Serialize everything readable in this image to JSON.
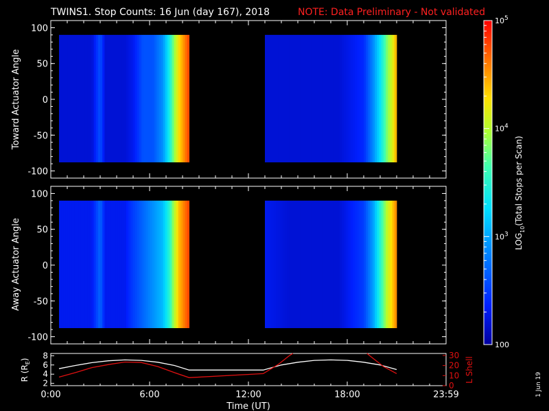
{
  "header": {
    "title": "TWINS1. Stop Counts: 16 Jun (day 167), 2018",
    "note": "NOTE: Data Preliminary - Not validated"
  },
  "footer": {
    "stamp": "1 Jun 19"
  },
  "colors": {
    "note": "#ff2020",
    "red_series": "#e01010",
    "white_series": "#ffffff"
  },
  "chart_data": [
    {
      "type": "heatmap",
      "panel": "toward",
      "ylabel": "Toward Actuator Angle",
      "ylim": [
        -110,
        110
      ],
      "yticks": [
        100,
        50,
        0,
        -50,
        -100
      ],
      "xlim": [
        0,
        24
      ],
      "xticklabels": [
        "0:00",
        "6:00",
        "12:00",
        "18:00",
        "23:59"
      ],
      "colorscale": "log10 counts, 100 to 1e5",
      "blocks": [
        {
          "t_start": 0.5,
          "t_end": 8.4,
          "angle_min": -88,
          "angle_max": 90,
          "log_counts_by_time": [
            [
              0.5,
              2.2
            ],
            [
              1.5,
              2.2
            ],
            [
              2.5,
              2.2
            ],
            [
              3.0,
              2.6
            ],
            [
              3.3,
              2.2
            ],
            [
              4.5,
              2.2
            ],
            [
              5.0,
              2.3
            ],
            [
              5.6,
              2.6
            ],
            [
              6.2,
              2.6
            ],
            [
              6.8,
              2.9
            ],
            [
              7.2,
              3.4
            ],
            [
              7.5,
              3.9
            ],
            [
              7.8,
              4.3
            ],
            [
              8.4,
              4.8
            ]
          ]
        },
        {
          "t_start": 13.0,
          "t_end": 21.0,
          "angle_min": -88,
          "angle_max": 90,
          "log_counts_by_time": [
            [
              13.0,
              2.2
            ],
            [
              14.5,
              2.2
            ],
            [
              16.0,
              2.2
            ],
            [
              17.5,
              2.2
            ],
            [
              19.0,
              2.4
            ],
            [
              19.6,
              2.9
            ],
            [
              20.0,
              3.3
            ],
            [
              20.4,
              3.8
            ],
            [
              20.8,
              4.2
            ],
            [
              21.0,
              4.5
            ]
          ]
        }
      ]
    },
    {
      "type": "heatmap",
      "panel": "away",
      "ylabel": "Away Actuator Angle",
      "ylim": [
        -110,
        110
      ],
      "yticks": [
        100,
        50,
        0,
        -50,
        -100
      ],
      "xlim": [
        0,
        24
      ],
      "xticklabels": [
        "0:00",
        "6:00",
        "12:00",
        "18:00",
        "23:59"
      ],
      "colorscale": "log10 counts, 100 to 1e5",
      "blocks": [
        {
          "t_start": 0.5,
          "t_end": 8.4,
          "angle_min": -88,
          "angle_max": 90,
          "log_counts_by_time": [
            [
              0.5,
              2.3
            ],
            [
              1.5,
              2.3
            ],
            [
              2.5,
              2.3
            ],
            [
              3.0,
              2.7
            ],
            [
              3.3,
              2.3
            ],
            [
              4.5,
              2.3
            ],
            [
              5.0,
              2.5
            ],
            [
              5.6,
              2.7
            ],
            [
              6.2,
              2.9
            ],
            [
              6.8,
              3.1
            ],
            [
              7.2,
              3.5
            ],
            [
              7.5,
              4.0
            ],
            [
              7.8,
              4.4
            ],
            [
              8.4,
              4.8
            ]
          ]
        },
        {
          "t_start": 13.0,
          "t_end": 21.0,
          "angle_min": -88,
          "angle_max": 90,
          "log_counts_by_time": [
            [
              13.0,
              2.3
            ],
            [
              14.5,
              2.2
            ],
            [
              16.0,
              2.2
            ],
            [
              17.5,
              2.2
            ],
            [
              19.0,
              2.5
            ],
            [
              19.6,
              3.0
            ],
            [
              20.0,
              3.5
            ],
            [
              20.4,
              4.0
            ],
            [
              20.8,
              4.4
            ],
            [
              21.0,
              4.6
            ]
          ]
        }
      ]
    },
    {
      "type": "colorbar",
      "label": "LOG",
      "label_sub": "10",
      "label_rest": "(Total Stops per Scan)",
      "range": [
        100,
        100000
      ],
      "ticks": [
        {
          "value": 100000,
          "base": "10",
          "exp": "5"
        },
        {
          "value": 10000,
          "base": "10",
          "exp": "4"
        },
        {
          "value": 1000,
          "base": "10",
          "exp": "3"
        },
        {
          "value": 100,
          "base": "100",
          "exp": ""
        }
      ]
    },
    {
      "type": "line",
      "panel": "orbit",
      "xlabel": "Time (UT)",
      "xlim": [
        0,
        24
      ],
      "xticklabels": [
        "0:00",
        "6:00",
        "12:00",
        "18:00",
        "23:59"
      ],
      "y_left": {
        "label": "R (R",
        "label_sub": "E",
        "label_end": ")",
        "ylim": [
          1.5,
          8.5
        ],
        "ticks": [
          "2",
          "4",
          "6",
          "8"
        ]
      },
      "y_right": {
        "label": "L Shell",
        "ylim": [
          0,
          32
        ],
        "ticks": [
          "0",
          "10",
          "20",
          "30"
        ]
      },
      "series": [
        {
          "axis": "left",
          "color": "#ffffff",
          "x": [
            0.5,
            1.5,
            2.5,
            3.5,
            4.5,
            5.5,
            6.5,
            7.5,
            8.4,
            12.9,
            14.0,
            15.0,
            16.0,
            17.0,
            18.0,
            19.0,
            20.0,
            21.0
          ],
          "y": [
            5.2,
            5.9,
            6.5,
            6.9,
            7.1,
            7.0,
            6.6,
            5.9,
            4.9,
            4.9,
            6.0,
            6.6,
            7.0,
            7.1,
            7.0,
            6.6,
            6.0,
            5.0
          ]
        },
        {
          "axis": "right",
          "color": "#e01010",
          "x": [
            0.5,
            1.5,
            2.5,
            3.5,
            4.5,
            5.5,
            6.5,
            7.5,
            8.4,
            12.9,
            13.8,
            14.5,
            14.7
          ],
          "y": [
            8.5,
            13,
            18,
            21,
            23.5,
            23,
            19,
            13,
            8,
            12,
            21,
            30,
            32
          ]
        },
        {
          "axis": "right",
          "color": "#e01010",
          "x": [
            19.2,
            19.5,
            20.2,
            21.0
          ],
          "y": [
            32,
            28,
            19,
            12
          ]
        }
      ]
    }
  ]
}
